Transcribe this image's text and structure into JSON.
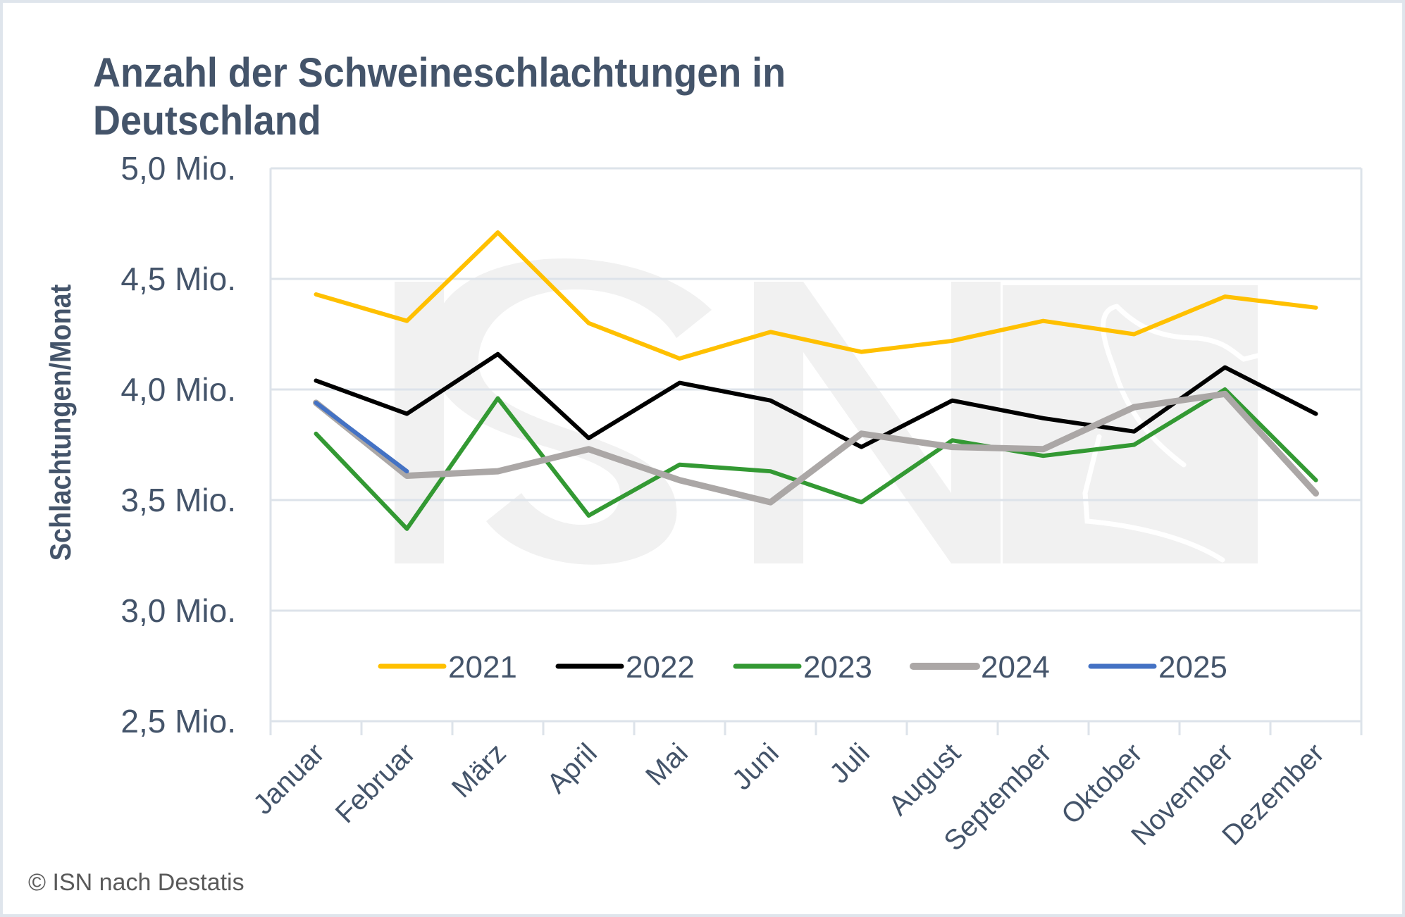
{
  "chart_data": {
    "type": "line",
    "title": "Anzahl der Schweineschlachtungen in Deutschland",
    "title_lines": [
      "Anzahl der Schweineschlachtungen in",
      "Deutschland"
    ],
    "xlabel": "",
    "ylabel": "Schlachtungen/Monat",
    "ylim": [
      2.5,
      5.0
    ],
    "y_unit": "Mio.",
    "y_ticks": [
      2.5,
      3.0,
      3.5,
      4.0,
      4.5,
      5.0
    ],
    "y_tick_labels": [
      "2,5 Mio.",
      "3,0 Mio.",
      "3,5 Mio.",
      "4,0 Mio.",
      "4,5 Mio.",
      "5,0 Mio."
    ],
    "grid": true,
    "legend_position": "bottom-inside",
    "categories": [
      "Januar",
      "Februar",
      "März",
      "April",
      "Mai",
      "Juni",
      "Juli",
      "August",
      "September",
      "Oktober",
      "November",
      "Dezember"
    ],
    "series": [
      {
        "name": "2021",
        "color": "#ffc000",
        "values": [
          4.43,
          4.31,
          4.71,
          4.3,
          4.14,
          4.26,
          4.17,
          4.22,
          4.31,
          4.25,
          4.42,
          4.37
        ]
      },
      {
        "name": "2022",
        "color": "#000000",
        "values": [
          4.04,
          3.89,
          4.16,
          3.78,
          4.03,
          3.95,
          3.74,
          3.95,
          3.87,
          3.81,
          4.1,
          3.89
        ]
      },
      {
        "name": "2023",
        "color": "#339933",
        "values": [
          3.8,
          3.37,
          3.96,
          3.43,
          3.66,
          3.63,
          3.49,
          3.77,
          3.7,
          3.75,
          4.0,
          3.59
        ]
      },
      {
        "name": "2024",
        "color": "#aba7a6",
        "values": [
          3.94,
          3.61,
          3.63,
          3.73,
          3.59,
          3.49,
          3.8,
          3.74,
          3.73,
          3.92,
          3.98,
          3.53
        ]
      },
      {
        "name": "2025",
        "color": "#4472c4",
        "values": [
          3.94,
          3.63
        ]
      }
    ]
  },
  "watermark": "ISN",
  "footer": "© ISN nach Destatis"
}
